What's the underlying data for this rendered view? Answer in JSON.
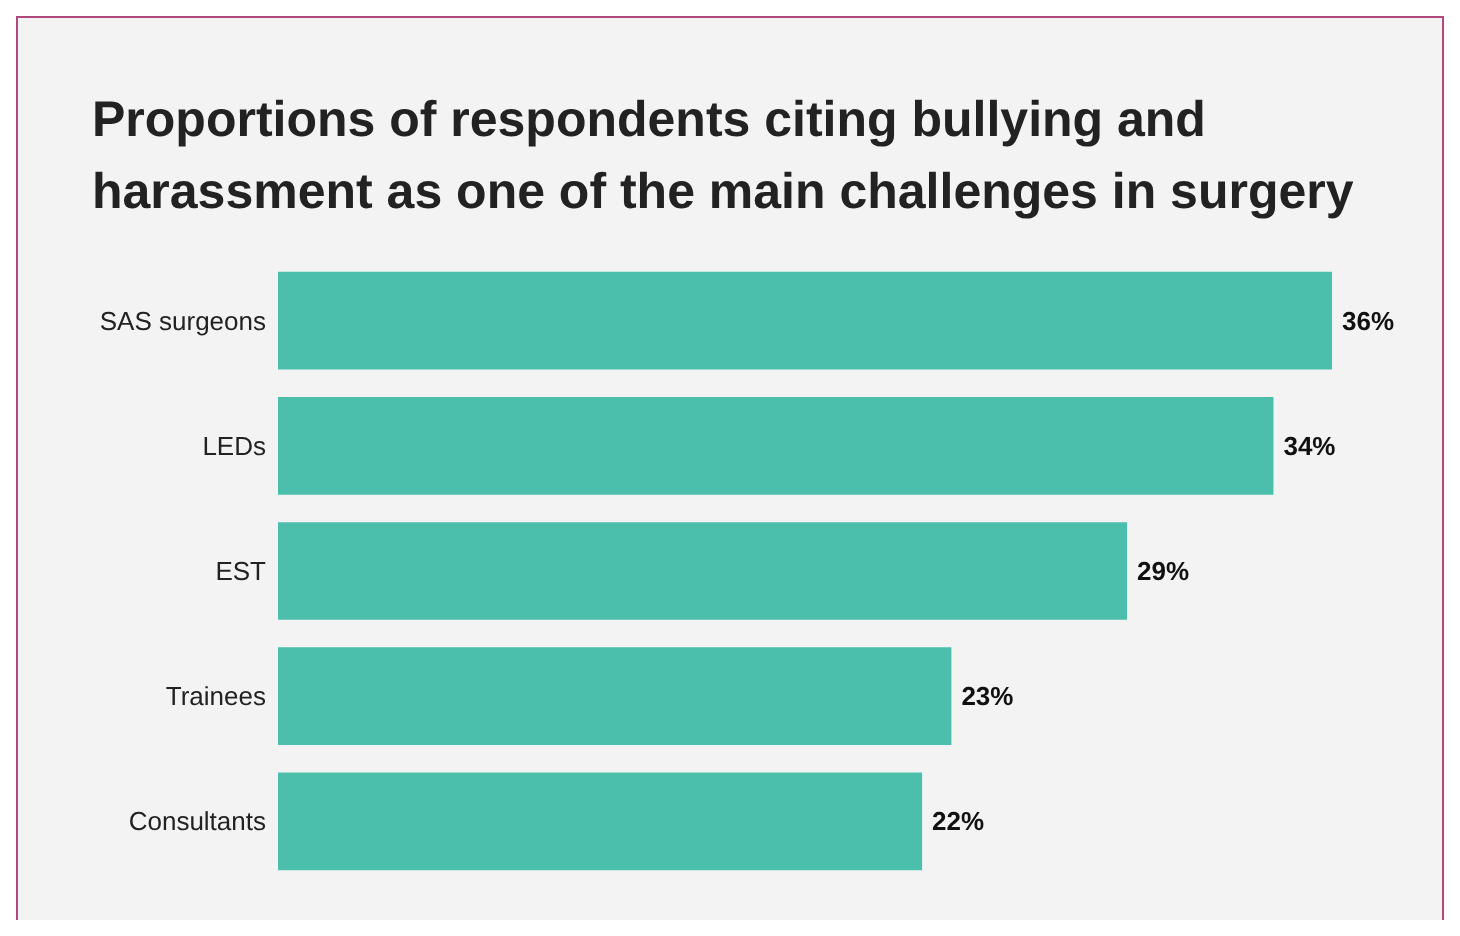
{
  "chart_data": {
    "type": "bar",
    "orientation": "horizontal",
    "title": "Proportions of respondents citing bullying and harassment as one of the main challenges in surgery",
    "categories": [
      "SAS surgeons",
      "LEDs",
      "EST",
      "Trainees",
      "Consultants"
    ],
    "values": [
      36,
      34,
      29,
      23,
      22
    ],
    "value_labels": [
      "36%",
      "34%",
      "29%",
      "23%",
      "22%"
    ],
    "color": "#4bbfac"
  }
}
